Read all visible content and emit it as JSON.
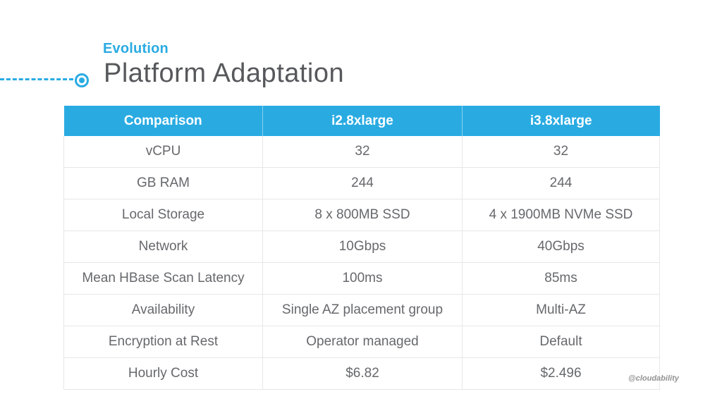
{
  "colors": {
    "accent_blue": "#29abe2",
    "title_gray": "#57585c",
    "cell_text_gray": "#67686c"
  },
  "header": {
    "kicker": "Evolution",
    "title": "Platform Adaptation"
  },
  "table": {
    "columns": [
      "Comparison",
      "i2.8xlarge",
      "i3.8xlarge"
    ],
    "rows": [
      [
        "vCPU",
        "32",
        "32"
      ],
      [
        "GB RAM",
        "244",
        "244"
      ],
      [
        "Local Storage",
        "8 x 800MB SSD",
        "4 x 1900MB NVMe SSD"
      ],
      [
        "Network",
        "10Gbps",
        "40Gbps"
      ],
      [
        "Mean HBase Scan Latency",
        "100ms",
        "85ms"
      ],
      [
        "Availability",
        "Single AZ placement group",
        "Multi-AZ"
      ],
      [
        "Encryption at Rest",
        "Operator managed",
        "Default"
      ],
      [
        "Hourly Cost",
        "$6.82",
        "$2.496"
      ]
    ]
  },
  "watermark": "@cloudability"
}
